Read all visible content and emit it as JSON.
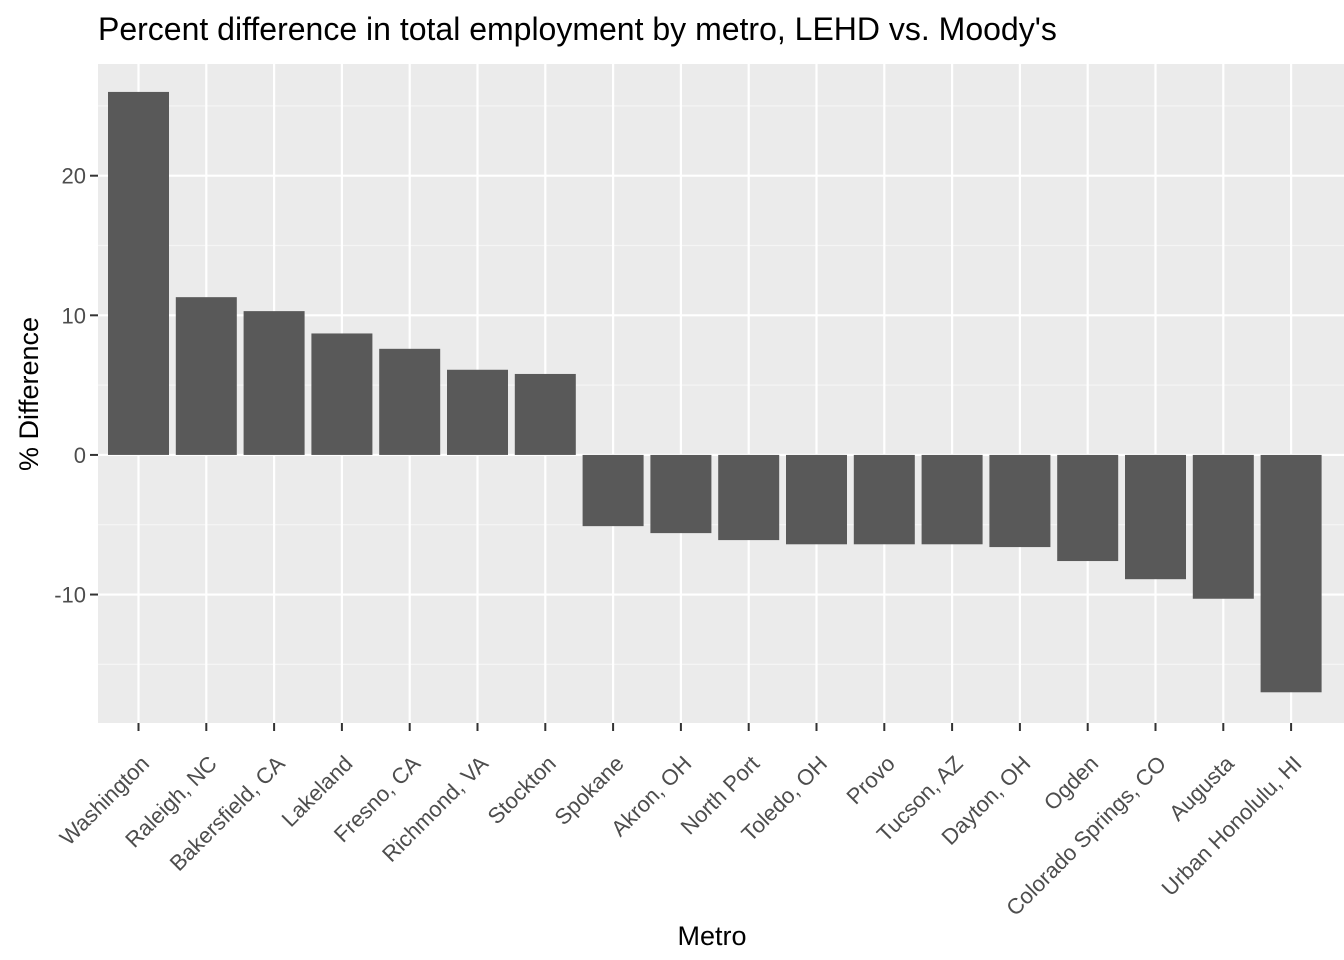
{
  "chart_data": {
    "type": "bar",
    "title": "Percent difference in total employment by metro, LEHD vs. Moody's",
    "xlabel": "Metro",
    "ylabel": "% Difference",
    "categories": [
      "Washington",
      "Raleigh, NC",
      "Bakersfield, CA",
      "Lakeland",
      "Fresno, CA",
      "Richmond, VA",
      "Stockton",
      "Spokane",
      "Akron, OH",
      "North Port",
      "Toledo, OH",
      "Provo",
      "Tucson, AZ",
      "Dayton, OH",
      "Ogden",
      "Colorado Springs, CO",
      "Augusta",
      "Urban Honolulu, HI"
    ],
    "values": [
      26.0,
      11.3,
      10.3,
      8.7,
      7.6,
      6.1,
      5.8,
      -5.1,
      -5.6,
      -6.1,
      -6.4,
      -6.4,
      -6.4,
      -6.6,
      -7.6,
      -8.9,
      -10.3,
      -17.0
    ],
    "ylim": [
      -19.2,
      28.0
    ],
    "yticks": [
      -10,
      0,
      10,
      20
    ],
    "ytick_labels": [
      "-10",
      "0",
      "10",
      "20"
    ],
    "grid": true,
    "colors": {
      "bar": "#595959",
      "panel": "#ebebeb",
      "grid_major": "#ffffff",
      "tick": "#333333"
    }
  }
}
